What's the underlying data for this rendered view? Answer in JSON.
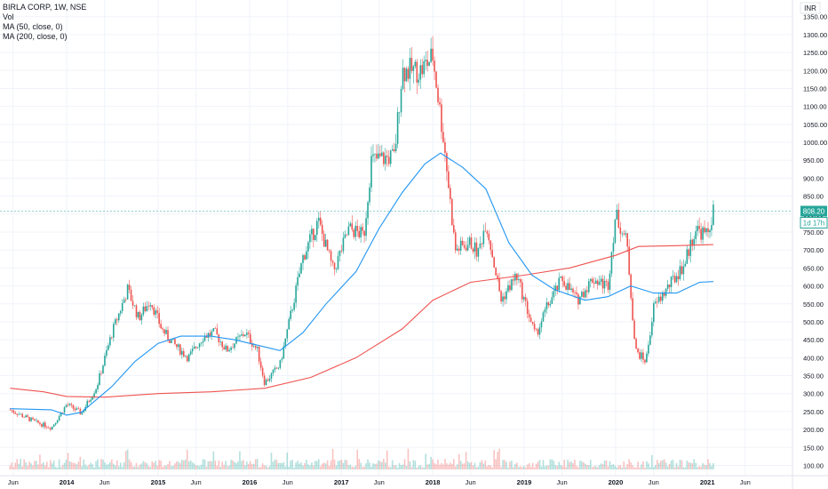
{
  "legend": {
    "symbol_line": "BIRLA CORP, 1W, NSE",
    "volume_label": "Vol",
    "ma50_label": "MA (50, close, 0)",
    "ma200_label": "MA (200, close, 0)"
  },
  "price_axis": {
    "currency": "INR",
    "ticks": [
      "1350.00",
      "1300.00",
      "1250.00",
      "1200.00",
      "1150.00",
      "1100.00",
      "1050.00",
      "1000.00",
      "950.00",
      "900.00",
      "850.00",
      "800.00",
      "750.00",
      "700.00",
      "650.00",
      "600.00",
      "550.00",
      "500.00",
      "450.00",
      "400.00",
      "350.00",
      "300.00",
      "250.00",
      "200.00",
      "150.00",
      "100.00"
    ],
    "last_price_label": "808.20",
    "countdown_label": "1d 17h"
  },
  "time_axis": {
    "labels": [
      "Jun",
      "2014",
      "Jun",
      "2015",
      "Jun",
      "2016",
      "Jun",
      "2017",
      "Jun",
      "2018",
      "Jun",
      "2019",
      "Jun",
      "2020",
      "Jun",
      "2021",
      "Jun"
    ]
  },
  "colors": {
    "up": "#26a69a",
    "down": "#ef5350",
    "ma50": "#2196f3",
    "ma200": "#ef5350",
    "price_line": "#26a69a"
  },
  "chart_data": {
    "type": "candlestick",
    "title": "BIRLA CORP, 1W, NSE",
    "timeframe": "1W",
    "ylim": [
      90,
      1365
    ],
    "last_price": 808.2,
    "price_path": [
      [
        "2013-05-20",
        255
      ],
      [
        "2013-09-01",
        220
      ],
      [
        "2013-11-01",
        205
      ],
      [
        "2014-01-01",
        270
      ],
      [
        "2014-03-01",
        245
      ],
      [
        "2014-05-01",
        320
      ],
      [
        "2014-07-01",
        470
      ],
      [
        "2014-09-01",
        590
      ],
      [
        "2014-10-15",
        510
      ],
      [
        "2014-12-01",
        560
      ],
      [
        "2015-01-15",
        480
      ],
      [
        "2015-03-01",
        440
      ],
      [
        "2015-05-01",
        400
      ],
      [
        "2015-07-01",
        460
      ],
      [
        "2015-08-15",
        470
      ],
      [
        "2015-10-01",
        420
      ],
      [
        "2015-12-15",
        470
      ],
      [
        "2016-02-01",
        420
      ],
      [
        "2016-03-01",
        330
      ],
      [
        "2016-05-01",
        380
      ],
      [
        "2016-06-01",
        480
      ],
      [
        "2016-08-01",
        680
      ],
      [
        "2016-10-01",
        780
      ],
      [
        "2016-12-01",
        640
      ],
      [
        "2017-02-01",
        760
      ],
      [
        "2017-04-01",
        740
      ],
      [
        "2017-05-01",
        950
      ],
      [
        "2017-08-01",
        960
      ],
      [
        "2017-09-01",
        1200
      ],
      [
        "2017-11-15",
        1200
      ],
      [
        "2018-01-01",
        1240
      ],
      [
        "2018-02-15",
        1000
      ],
      [
        "2018-04-01",
        700
      ],
      [
        "2018-06-01",
        720
      ],
      [
        "2018-07-01",
        690
      ],
      [
        "2018-08-01",
        780
      ],
      [
        "2018-10-01",
        560
      ],
      [
        "2018-12-01",
        630
      ],
      [
        "2019-02-15",
        460
      ],
      [
        "2019-04-01",
        540
      ],
      [
        "2019-06-01",
        620
      ],
      [
        "2019-08-01",
        560
      ],
      [
        "2019-10-01",
        620
      ],
      [
        "2019-12-01",
        600
      ],
      [
        "2020-01-01",
        800
      ],
      [
        "2020-02-15",
        720
      ],
      [
        "2020-03-20",
        420
      ],
      [
        "2020-05-01",
        390
      ],
      [
        "2020-06-01",
        540
      ],
      [
        "2020-08-01",
        600
      ],
      [
        "2020-10-01",
        660
      ],
      [
        "2020-11-15",
        760
      ],
      [
        "2021-01-01",
        740
      ],
      [
        "2021-01-25",
        808
      ]
    ],
    "ma50_path": [
      [
        "2013-05-20",
        258
      ],
      [
        "2013-11-01",
        255
      ],
      [
        "2014-01-01",
        240
      ],
      [
        "2014-03-01",
        248
      ],
      [
        "2014-07-01",
        320
      ],
      [
        "2014-10-01",
        390
      ],
      [
        "2015-01-01",
        440
      ],
      [
        "2015-04-01",
        460
      ],
      [
        "2015-08-01",
        460
      ],
      [
        "2015-11-01",
        450
      ],
      [
        "2016-03-01",
        430
      ],
      [
        "2016-05-01",
        420
      ],
      [
        "2016-08-01",
        470
      ],
      [
        "2016-11-01",
        550
      ],
      [
        "2017-03-01",
        640
      ],
      [
        "2017-06-01",
        760
      ],
      [
        "2017-09-01",
        860
      ],
      [
        "2017-12-01",
        940
      ],
      [
        "2018-02-01",
        970
      ],
      [
        "2018-05-01",
        930
      ],
      [
        "2018-08-01",
        870
      ],
      [
        "2018-11-01",
        720
      ],
      [
        "2019-02-01",
        630
      ],
      [
        "2019-05-01",
        590
      ],
      [
        "2019-09-01",
        560
      ],
      [
        "2019-12-01",
        570
      ],
      [
        "2020-03-01",
        600
      ],
      [
        "2020-06-01",
        580
      ],
      [
        "2020-09-01",
        580
      ],
      [
        "2020-12-01",
        610
      ],
      [
        "2021-01-25",
        612
      ]
    ],
    "ma200_path": [
      [
        "2013-05-20",
        315
      ],
      [
        "2013-10-01",
        305
      ],
      [
        "2014-01-01",
        292
      ],
      [
        "2014-06-01",
        290
      ],
      [
        "2015-01-01",
        300
      ],
      [
        "2015-08-01",
        305
      ],
      [
        "2016-03-01",
        315
      ],
      [
        "2016-09-01",
        345
      ],
      [
        "2017-03-01",
        400
      ],
      [
        "2017-09-01",
        480
      ],
      [
        "2018-01-01",
        560
      ],
      [
        "2018-06-01",
        610
      ],
      [
        "2019-01-01",
        630
      ],
      [
        "2019-07-01",
        650
      ],
      [
        "2020-01-01",
        685
      ],
      [
        "2020-04-01",
        710
      ],
      [
        "2020-09-01",
        712
      ],
      [
        "2021-01-25",
        715
      ]
    ],
    "volume_axis_max": 1000000
  }
}
